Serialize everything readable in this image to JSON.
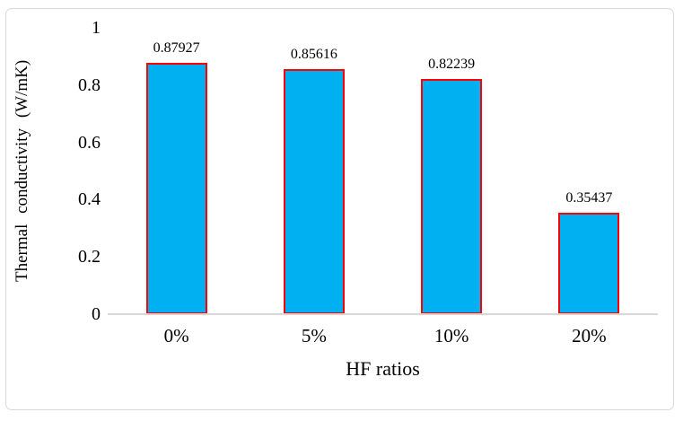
{
  "chart_data": {
    "type": "bar",
    "title": "",
    "categories": [
      "0%",
      "5%",
      "10%",
      "20%"
    ],
    "values": [
      0.87927,
      0.85616,
      0.82239,
      0.35437
    ],
    "data_labels": [
      "0.87927",
      "0.85616",
      "0.82239",
      "0.35437"
    ],
    "xlabel": "HF ratios",
    "ylabel": "Thermal conductivity (W/mK)",
    "ylim": [
      0,
      1
    ],
    "yticks": [
      0,
      0.2,
      0.4,
      0.6,
      0.8,
      1
    ],
    "ytick_labels": [
      "0",
      "0.2",
      "0.4",
      "0.6",
      "0.8",
      "1"
    ],
    "grid": false,
    "legend": false,
    "colors": {
      "bar_fill": "#00B0F0",
      "bar_border": "#FF0000",
      "axis_line": "#D9D9D9",
      "frame_border": "#D9D9D9",
      "text": "#000000",
      "background": "#FFFFFF"
    }
  }
}
